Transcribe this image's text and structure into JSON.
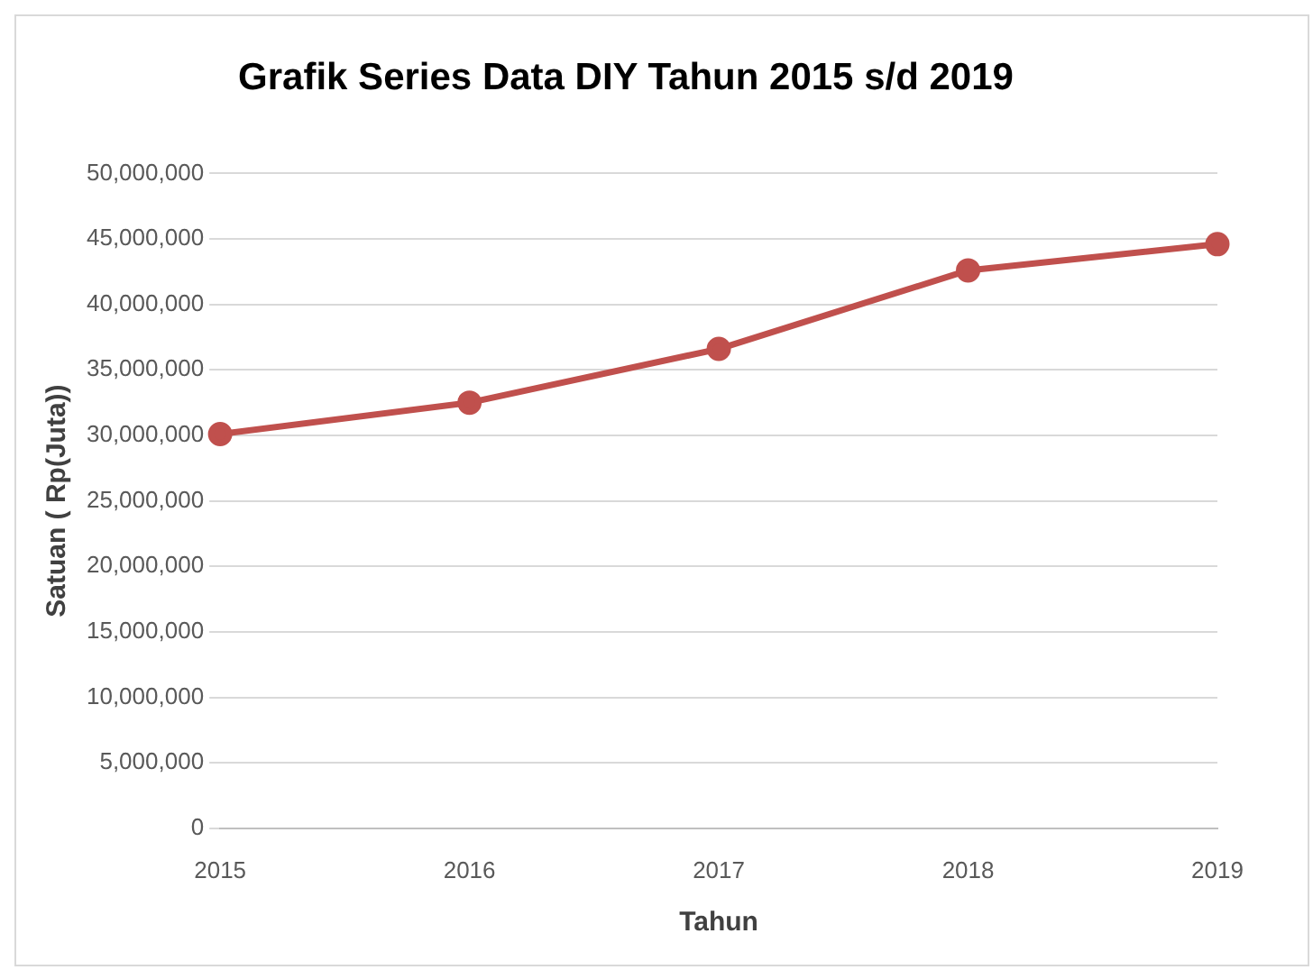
{
  "chart_data": {
    "type": "line",
    "title": "Grafik Series Data DIY Tahun 2015 s/d 2019",
    "xlabel": "Tahun",
    "ylabel": "Satuan ( Rp(Juta))",
    "categories": [
      "2015",
      "2016",
      "2017",
      "2018",
      "2019"
    ],
    "series": [
      {
        "color": "#c0504d",
        "values": [
          30100000,
          32500000,
          36600000,
          42600000,
          44600000
        ]
      }
    ],
    "ylim": [
      0,
      50000000
    ],
    "yticks": [
      0,
      {
        "value": 5000000,
        "label": "5,000,000"
      },
      {
        "value": 10000000,
        "label": "10,000,000"
      },
      {
        "value": 15000000,
        "label": "15,000,000"
      },
      {
        "value": 20000000,
        "label": "20,000,000"
      },
      {
        "value": 25000000,
        "label": "25,000,000"
      },
      {
        "value": 30000000,
        "label": "30,000,000"
      },
      {
        "value": 35000000,
        "label": "35,000,000"
      },
      {
        "value": 40000000,
        "label": "40,000,000"
      },
      {
        "value": 45000000,
        "label": "45,000,000"
      },
      {
        "value": 50000000,
        "label": "50,000,000"
      }
    ],
    "grid": "y",
    "legend": false,
    "marker": "circle",
    "line_style": "solid"
  }
}
